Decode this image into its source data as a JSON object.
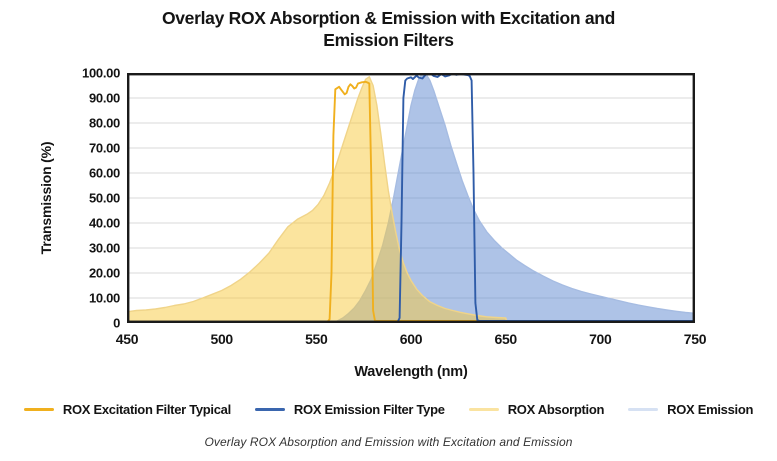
{
  "header": {
    "title_line1": "Overlay ROX Absorption & Emission with Excitation and",
    "title_line2": "Emission Filters"
  },
  "caption": "Overlay ROX Absorption and Emission with Excitation and Emission",
  "chart_data": {
    "type": "area",
    "title": "Overlay ROX Absorption & Emission with Excitation and Emission Filters",
    "xlabel": "Wavelength (nm)",
    "ylabel": "Transmission (%)",
    "xlim": [
      450,
      750
    ],
    "ylim": [
      0,
      100
    ],
    "x_ticks": [
      450,
      500,
      550,
      600,
      650,
      700,
      750
    ],
    "y_ticks": [
      "100.00",
      "90.00",
      "80.00",
      "70.00",
      "60.00",
      "50.00",
      "40.00",
      "30.00",
      "20.00",
      "10.00",
      "0"
    ],
    "grid": "horizontal",
    "gridline_color": "#D9D9D9",
    "border_color": "#1a1a1a",
    "legend_position": "bottom",
    "series": [
      {
        "name": "ROX Emission",
        "type": "area",
        "fill": "rgba(93,135,207,0.5)",
        "edge": "#A6BCE2",
        "points": [
          [
            558,
            0
          ],
          [
            561,
            0.8
          ],
          [
            564,
            2
          ],
          [
            567,
            3.8
          ],
          [
            570,
            6
          ],
          [
            573,
            9
          ],
          [
            576,
            13
          ],
          [
            579,
            17.5
          ],
          [
            582,
            24
          ],
          [
            585,
            31
          ],
          [
            588,
            40
          ],
          [
            591,
            51
          ],
          [
            594,
            63
          ],
          [
            597,
            75
          ],
          [
            600,
            87
          ],
          [
            602,
            93
          ],
          [
            604,
            97.5
          ],
          [
            606,
            99.8
          ],
          [
            608,
            99.5
          ],
          [
            610,
            97
          ],
          [
            612,
            93
          ],
          [
            615,
            86
          ],
          [
            618,
            79
          ],
          [
            621,
            71
          ],
          [
            624,
            64
          ],
          [
            627,
            57
          ],
          [
            630,
            51
          ],
          [
            633,
            45.5
          ],
          [
            636,
            41
          ],
          [
            640,
            36.5
          ],
          [
            644,
            33
          ],
          [
            648,
            30
          ],
          [
            652,
            27.5
          ],
          [
            656,
            25
          ],
          [
            660,
            23
          ],
          [
            665,
            20.7
          ],
          [
            670,
            18.7
          ],
          [
            675,
            16.8
          ],
          [
            680,
            15.2
          ],
          [
            685,
            13.8
          ],
          [
            690,
            12.6
          ],
          [
            695,
            11.6
          ],
          [
            700,
            10.7
          ],
          [
            705,
            9.8
          ],
          [
            710,
            8.9
          ],
          [
            715,
            8
          ],
          [
            720,
            7.2
          ],
          [
            725,
            6.5
          ],
          [
            730,
            5.8
          ],
          [
            735,
            5.2
          ],
          [
            740,
            4.7
          ],
          [
            745,
            4.2
          ],
          [
            750,
            3.9
          ]
        ]
      },
      {
        "name": "ROX Absorption",
        "type": "area",
        "fill": "rgba(247,201,61,0.5)",
        "edge": "#F0D489",
        "points": [
          [
            450,
            4.5
          ],
          [
            455,
            5
          ],
          [
            460,
            5.2
          ],
          [
            465,
            5.6
          ],
          [
            470,
            6.2
          ],
          [
            475,
            7
          ],
          [
            480,
            7.6
          ],
          [
            485,
            8.6
          ],
          [
            490,
            10
          ],
          [
            495,
            11.5
          ],
          [
            500,
            13
          ],
          [
            505,
            15
          ],
          [
            510,
            17.5
          ],
          [
            515,
            20.5
          ],
          [
            520,
            24
          ],
          [
            525,
            28
          ],
          [
            530,
            33.5
          ],
          [
            535,
            38.5
          ],
          [
            540,
            41.5
          ],
          [
            545,
            43.5
          ],
          [
            548,
            45
          ],
          [
            551,
            47.5
          ],
          [
            554,
            51
          ],
          [
            557,
            56
          ],
          [
            560,
            62
          ],
          [
            563,
            69
          ],
          [
            566,
            76
          ],
          [
            569,
            83
          ],
          [
            572,
            90
          ],
          [
            574,
            94
          ],
          [
            576,
            97.5
          ],
          [
            578,
            98.5
          ],
          [
            580,
            95
          ],
          [
            582,
            87
          ],
          [
            584,
            76
          ],
          [
            586,
            64
          ],
          [
            588,
            53
          ],
          [
            590,
            44
          ],
          [
            592,
            36
          ],
          [
            594,
            29
          ],
          [
            596,
            24
          ],
          [
            598,
            20
          ],
          [
            600,
            17
          ],
          [
            603,
            13.5
          ],
          [
            606,
            11
          ],
          [
            610,
            8.5
          ],
          [
            614,
            7
          ],
          [
            618,
            5.8
          ],
          [
            622,
            5
          ],
          [
            626,
            4.3
          ],
          [
            630,
            3.7
          ],
          [
            635,
            3
          ],
          [
            640,
            2.5
          ],
          [
            645,
            2.2
          ],
          [
            650,
            2
          ],
          [
            650.8,
            0
          ]
        ]
      },
      {
        "name": "ROX Excitation Filter Typical",
        "type": "line",
        "color": "#F0B01E",
        "points": [
          [
            450,
            0.6
          ],
          [
            556,
            0.6
          ],
          [
            557,
            1.5
          ],
          [
            558,
            20
          ],
          [
            559,
            75
          ],
          [
            560,
            93.5
          ],
          [
            562,
            94.5
          ],
          [
            563,
            93.5
          ],
          [
            565,
            91.5
          ],
          [
            566,
            92
          ],
          [
            567,
            94.5
          ],
          [
            568,
            95.5
          ],
          [
            569,
            94.8
          ],
          [
            570,
            93.8
          ],
          [
            571,
            94.2
          ],
          [
            572,
            95.8
          ],
          [
            574,
            96.3
          ],
          [
            576,
            96.5
          ],
          [
            577,
            96.2
          ],
          [
            578,
            95.8
          ],
          [
            579,
            60
          ],
          [
            580,
            5
          ],
          [
            581,
            0.8
          ],
          [
            750,
            0.8
          ]
        ]
      },
      {
        "name": "ROX Emission Filter Type",
        "type": "line",
        "color": "#2F5CA8",
        "points": [
          [
            450,
            0.5
          ],
          [
            593,
            0.5
          ],
          [
            594,
            2
          ],
          [
            595,
            40
          ],
          [
            596,
            90
          ],
          [
            597,
            97
          ],
          [
            598,
            97.8
          ],
          [
            600,
            98.3
          ],
          [
            601,
            97.6
          ],
          [
            603,
            99
          ],
          [
            604,
            98.2
          ],
          [
            606,
            97.8
          ],
          [
            608,
            99.6
          ],
          [
            610,
            100
          ],
          [
            612,
            98.8
          ],
          [
            614,
            98.4
          ],
          [
            616,
            99.6
          ],
          [
            618,
            98.6
          ],
          [
            620,
            99
          ],
          [
            622,
            99.8
          ],
          [
            624,
            99.3
          ],
          [
            626,
            99.7
          ],
          [
            628,
            99.4
          ],
          [
            630,
            99.2
          ],
          [
            631,
            98.8
          ],
          [
            632,
            97
          ],
          [
            633,
            60
          ],
          [
            634,
            8
          ],
          [
            635,
            1.2
          ],
          [
            636,
            0.8
          ],
          [
            750,
            0.8
          ]
        ]
      }
    ],
    "legend": [
      {
        "label": "ROX Excitation Filter Typical",
        "color": "#F0B01E"
      },
      {
        "label": "ROX Emission Filter Type",
        "color": "#3A66AE"
      },
      {
        "label": "ROX Absorption",
        "color": "#FAE3A0"
      },
      {
        "label": "ROX Emission",
        "color": "#D6E1F3"
      }
    ]
  }
}
